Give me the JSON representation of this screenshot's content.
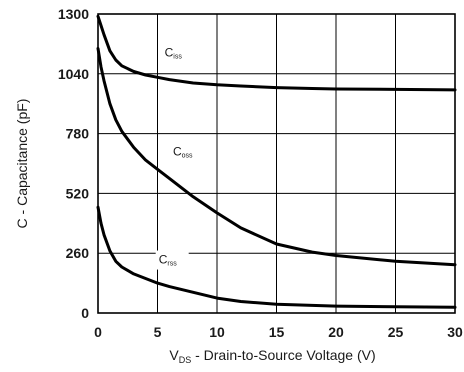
{
  "chart_data": {
    "type": "line",
    "xlabel": {
      "main": "V",
      "sub": "DS",
      "rest": " - Drain-to-Source Voltage (V)"
    },
    "ylabel": "C - Capacitance (pF)",
    "xlim": [
      0,
      30
    ],
    "ylim": [
      0,
      1300
    ],
    "xticks": [
      "0",
      "5",
      "10",
      "15",
      "20",
      "25",
      "30"
    ],
    "yticks": [
      "0",
      "260",
      "520",
      "780",
      "1040",
      "1300"
    ],
    "grid": true,
    "series": [
      {
        "name": {
          "main": "C",
          "sub": "iss"
        },
        "x": [
          0,
          0.25,
          0.5,
          1,
          1.5,
          2,
          3,
          4,
          5,
          6,
          8,
          10,
          12,
          15,
          18,
          20,
          25,
          30
        ],
        "y": [
          1290,
          1250,
          1210,
          1140,
          1100,
          1075,
          1050,
          1035,
          1025,
          1015,
          1000,
          992,
          987,
          980,
          976,
          974,
          972,
          970
        ]
      },
      {
        "name": {
          "main": "C",
          "sub": "oss"
        },
        "x": [
          0,
          0.25,
          0.5,
          1,
          1.5,
          2,
          3,
          4,
          5,
          6,
          8,
          10,
          12,
          15,
          18,
          20,
          25,
          30
        ],
        "y": [
          1150,
          1070,
          1010,
          910,
          840,
          790,
          720,
          665,
          625,
          585,
          505,
          435,
          370,
          300,
          265,
          250,
          225,
          210
        ]
      },
      {
        "name": {
          "main": "C",
          "sub": "rss"
        },
        "x": [
          0,
          0.25,
          0.5,
          1,
          1.5,
          2,
          3,
          4,
          5,
          6,
          8,
          10,
          12,
          15,
          18,
          20,
          25,
          30
        ],
        "y": [
          460,
          390,
          340,
          270,
          225,
          200,
          170,
          150,
          130,
          115,
          90,
          65,
          50,
          38,
          33,
          30,
          27,
          25
        ]
      }
    ]
  }
}
